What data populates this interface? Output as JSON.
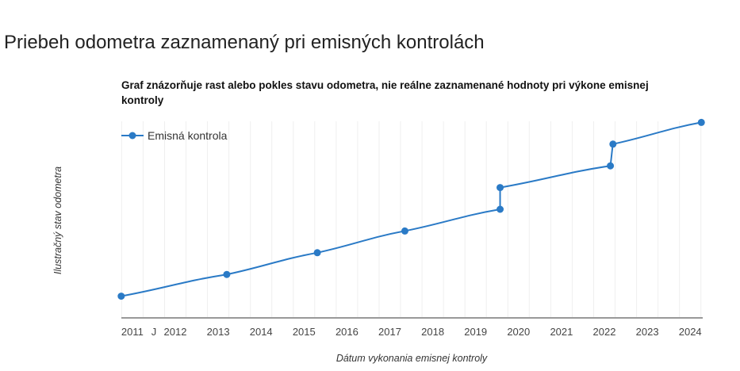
{
  "page": {
    "title": "Priebeh odometra zaznamenaný pri emisných kontrolách"
  },
  "chart_data": {
    "type": "line",
    "title": "Graf znázorňuje rast alebo pokles stavu odometra, nie reálne zaznamenané hodnoty pri výkone emisnej kontroly",
    "xlabel": "Dátum vykonania emisnej kontroly",
    "ylabel": "Ilustračný stav odometra",
    "x_tick_labels": [
      {
        "label": "2011",
        "date": 2011.0
      },
      {
        "label": "J",
        "date": 2011.5
      },
      {
        "label": "2012",
        "date": 2012.0
      },
      {
        "label": "2013",
        "date": 2013.0
      },
      {
        "label": "2014",
        "date": 2014.0
      },
      {
        "label": "2015",
        "date": 2015.0
      },
      {
        "label": "2016",
        "date": 2016.0
      },
      {
        "label": "2017",
        "date": 2017.0
      },
      {
        "label": "2018",
        "date": 2018.0
      },
      {
        "label": "2019",
        "date": 2019.0
      },
      {
        "label": "2020",
        "date": 2020.0
      },
      {
        "label": "2021",
        "date": 2021.0
      },
      {
        "label": "2022",
        "date": 2022.0
      },
      {
        "label": "2023",
        "date": 2023.0
      },
      {
        "label": "2024",
        "date": 2024.0
      }
    ],
    "xlim": [
      2010.74,
      2024.3
    ],
    "ylim": [
      0,
      9
    ],
    "grid": "vertical",
    "legend": "top-left",
    "series": [
      {
        "name": "Emisná kontrola",
        "color": "#2a7ac6",
        "points": [
          {
            "date": "2010-09",
            "x": 2010.74,
            "y": 1
          },
          {
            "date": "2013-03",
            "x": 2013.2,
            "y": 2
          },
          {
            "date": "2015-04",
            "x": 2015.31,
            "y": 3
          },
          {
            "date": "2017-05",
            "x": 2017.35,
            "y": 4
          },
          {
            "date": "2019-07",
            "x": 2019.57,
            "y": 5
          },
          {
            "date": "2019-07",
            "x": 2019.57,
            "y": 6
          },
          {
            "date": "2022-02",
            "x": 2022.14,
            "y": 7
          },
          {
            "date": "2022-03",
            "x": 2022.2,
            "y": 8
          },
          {
            "date": "2024-04",
            "x": 2024.26,
            "y": 9
          }
        ]
      }
    ]
  }
}
